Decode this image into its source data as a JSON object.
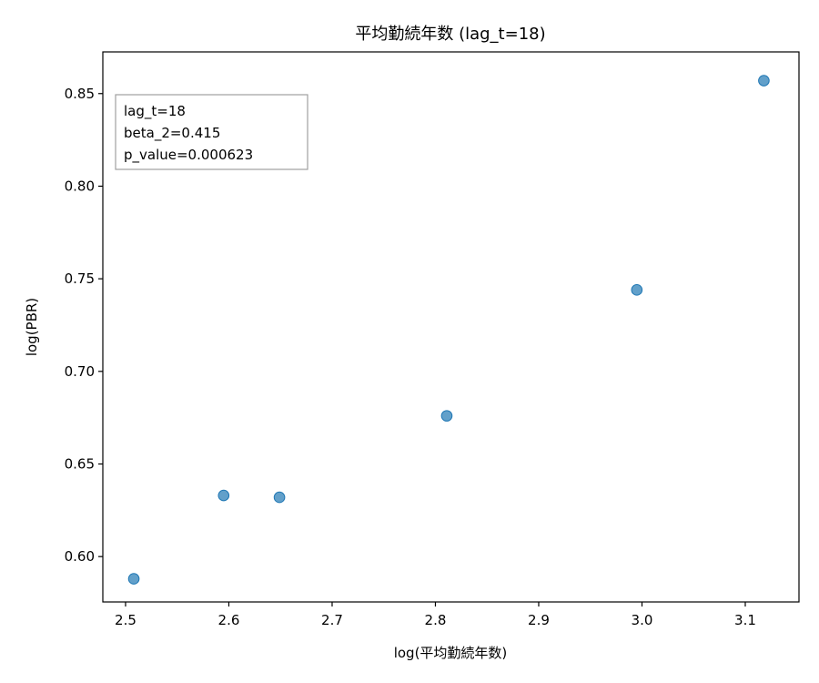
{
  "chart_data": {
    "type": "scatter",
    "title": "平均勤続年数 (lag_t=18)",
    "xlabel": "log(平均勤続年数)",
    "ylabel": "log(PBR)",
    "xlim": [
      2.478,
      3.152
    ],
    "ylim": [
      0.5755,
      0.8725
    ],
    "xticks": [
      2.5,
      2.6,
      2.7,
      2.8,
      2.9,
      3.0,
      3.1
    ],
    "xtick_labels": [
      "2.5",
      "2.6",
      "2.7",
      "2.8",
      "2.9",
      "3.0",
      "3.1"
    ],
    "yticks": [
      0.6,
      0.65,
      0.7,
      0.75,
      0.8,
      0.85
    ],
    "ytick_labels": [
      "0.60",
      "0.65",
      "0.70",
      "0.75",
      "0.80",
      "0.85"
    ],
    "grid": false,
    "marker_color": "#1f77b4",
    "points": [
      {
        "x": 2.508,
        "y": 0.588
      },
      {
        "x": 2.595,
        "y": 0.633
      },
      {
        "x": 2.649,
        "y": 0.632
      },
      {
        "x": 2.811,
        "y": 0.676
      },
      {
        "x": 2.995,
        "y": 0.744
      },
      {
        "x": 3.118,
        "y": 0.857
      }
    ],
    "annotation": {
      "placement": "top-left",
      "lines": [
        "lag_t=18",
        "beta_2=0.415",
        "p_value=0.000623"
      ]
    }
  }
}
